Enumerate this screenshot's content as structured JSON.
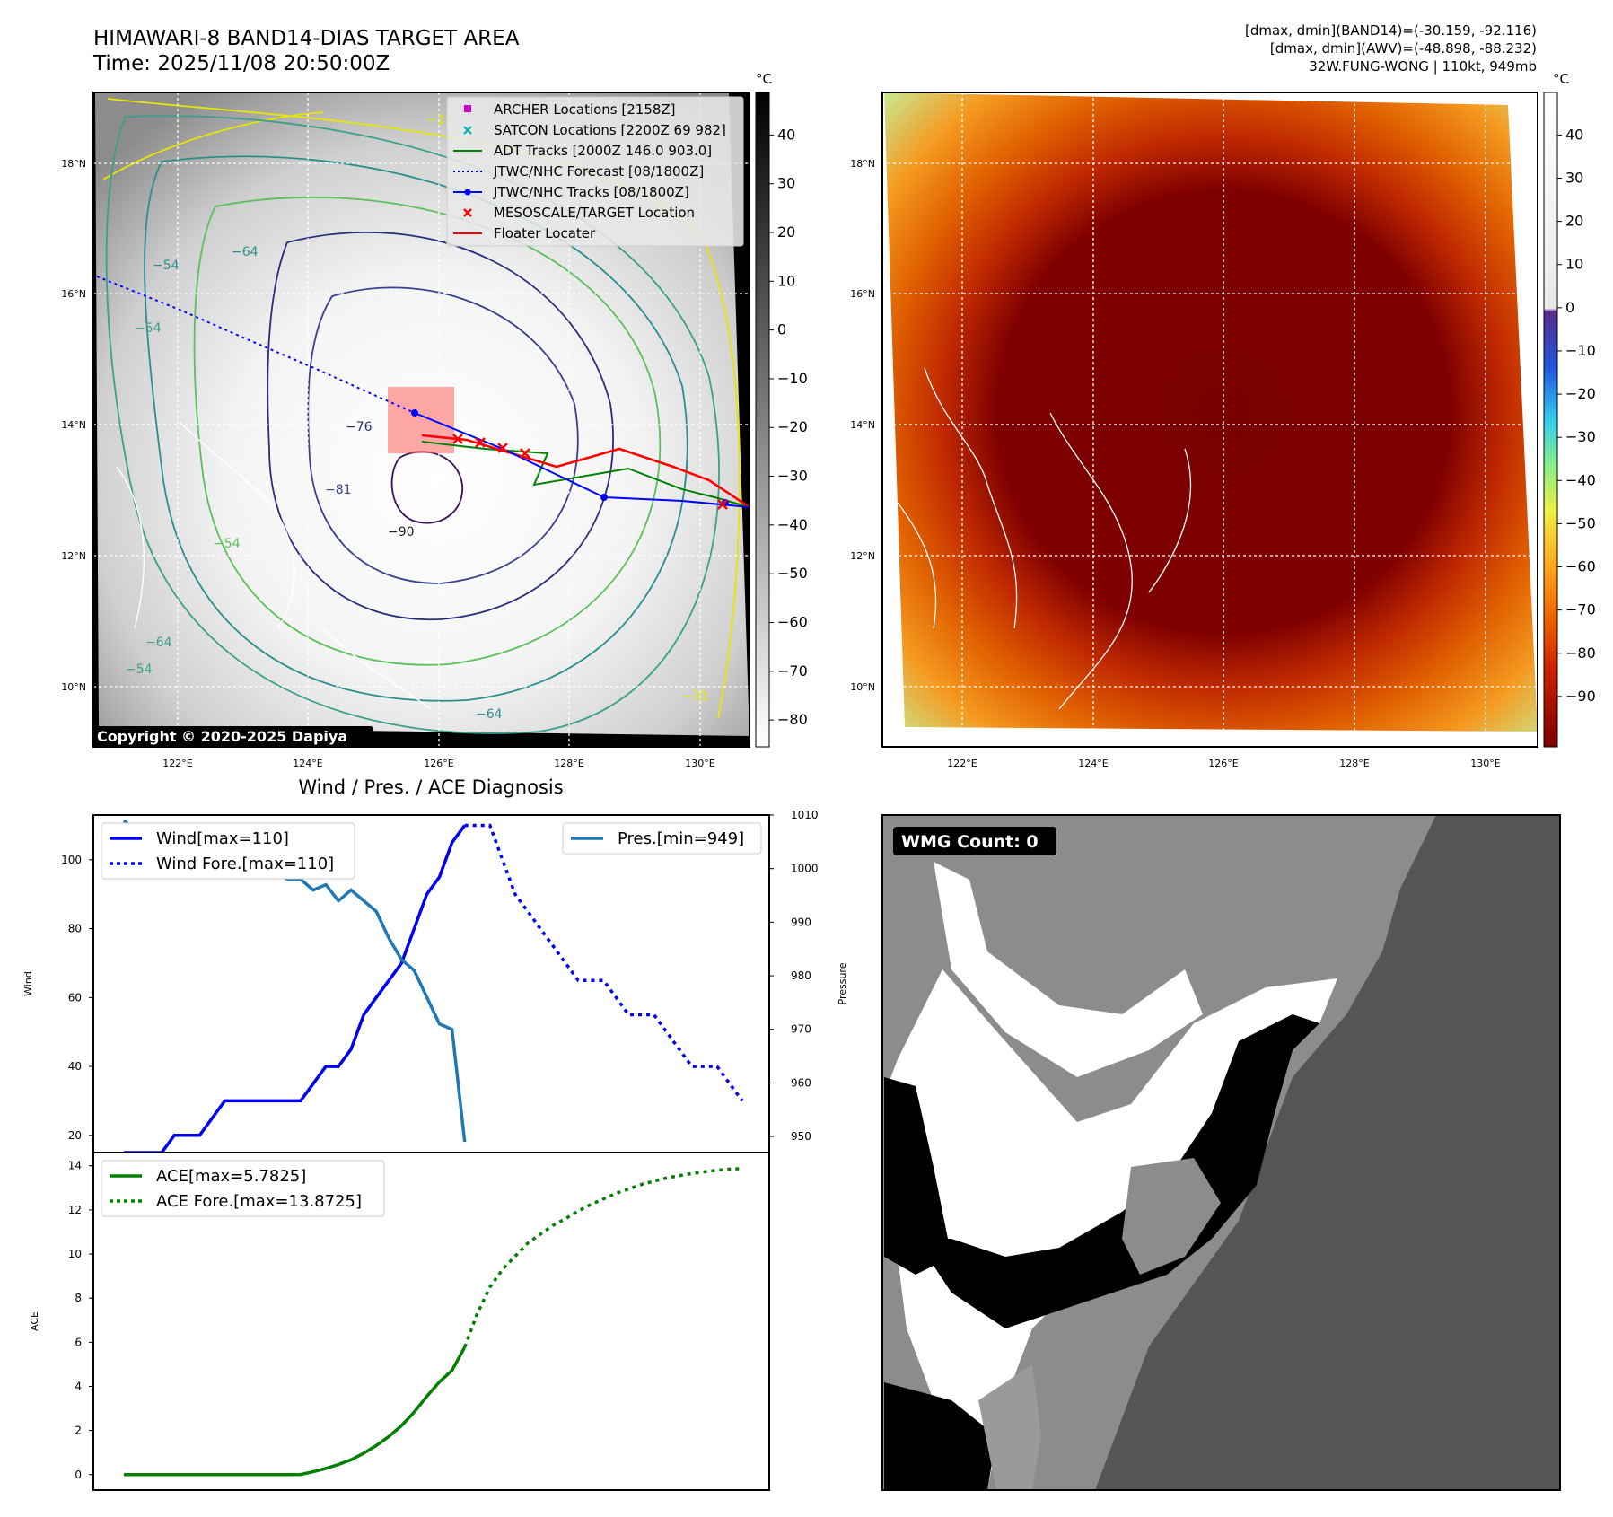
{
  "header": {
    "title_line1": "HIMAWARI-8 BAND14-DIAS TARGET AREA",
    "title_line2": "Time: 2025/11/08 20:50:00Z",
    "stats_line1": "[dmax, dmin](BAND14)=(-30.159, -92.116)",
    "stats_line2": "[dmax, dmin](AWV)=(-48.898, -88.232)",
    "stats_line3": "32W.FUNG-WONG | 110kt, 949mb"
  },
  "colors": {
    "wind": "#0000ee",
    "pressure": "#1f77b4",
    "ace": "#008000",
    "floater": "#ff0000",
    "adt": "#008000",
    "jtwc": "#0000ff",
    "archer": "#cc00cc",
    "satcon": "#00b0b0"
  },
  "map_left": {
    "unit": "°C",
    "copyright": "Copyright © 2020-2025 Dapiya",
    "colorbar_ticks": [
      "40",
      "30",
      "20",
      "10",
      "0",
      "−10",
      "−20",
      "−30",
      "−40",
      "−50",
      "−60",
      "−70",
      "−80"
    ],
    "x_ticks": [
      "122°E",
      "124°E",
      "126°E",
      "128°E",
      "130°E"
    ],
    "y_ticks": [
      "18°N",
      "16°N",
      "14°N",
      "12°N",
      "10°N"
    ],
    "contour_labels": [
      "−90",
      "−81",
      "−76",
      "−64",
      "−54",
      "−54",
      "−54",
      "−64",
      "−31",
      "−31",
      "−64",
      "−54"
    ],
    "legend": [
      {
        "label": "ARCHER Locations [2158Z]",
        "icon": "square-marker"
      },
      {
        "label": "SATCON Locations [2200Z 69 982]",
        "icon": "x-marker"
      },
      {
        "label": "ADT Tracks [2000Z 146.0 903.0]",
        "icon": "solid-line"
      },
      {
        "label": "JTWC/NHC Forecast [08/1800Z]",
        "icon": "dotted-line"
      },
      {
        "label": "JTWC/NHC Tracks [08/1800Z]",
        "icon": "line-dot"
      },
      {
        "label": "MESOSCALE/TARGET Location",
        "icon": "x-marker"
      },
      {
        "label": "Floater Locater",
        "icon": "solid-line"
      }
    ]
  },
  "map_right": {
    "unit": "°C",
    "colorbar_ticks": [
      "40",
      "30",
      "20",
      "10",
      "0",
      "−10",
      "−20",
      "−30",
      "−40",
      "−50",
      "−60",
      "−70",
      "−80",
      "−90"
    ],
    "x_ticks": [
      "122°E",
      "124°E",
      "126°E",
      "128°E",
      "130°E"
    ],
    "y_ticks": [
      "18°N",
      "16°N",
      "14°N",
      "12°N",
      "10°N"
    ]
  },
  "wmg": {
    "count_label": "WMG Count: 0"
  },
  "chart_data": [
    {
      "type": "line",
      "title": "Wind / Pres. / ACE Diagnosis",
      "ylabel": "Wind",
      "ylabel_right": "Pressure",
      "ylim": [
        15,
        113
      ],
      "ylim_right": [
        947,
        1010
      ],
      "yticks": [
        "20",
        "40",
        "60",
        "80",
        "100"
      ],
      "yticks_right": [
        "950",
        "960",
        "970",
        "980",
        "990",
        "1000",
        "1010"
      ],
      "x": [
        0,
        1,
        2,
        3,
        4,
        5,
        6,
        7,
        8,
        9,
        10,
        11,
        12,
        13,
        14,
        15,
        16,
        17,
        18,
        19,
        20,
        21,
        22,
        23,
        24,
        25,
        26,
        27,
        28,
        29,
        30,
        31,
        32,
        33,
        34,
        35,
        36,
        37,
        38,
        39,
        40,
        41,
        42,
        43,
        44,
        45,
        46,
        47,
        48,
        49
      ],
      "series": [
        {
          "name": "Wind[max=110]",
          "axis": "left",
          "style": "solid",
          "x": [
            0,
            1,
            2,
            3,
            4,
            5,
            6,
            7,
            8,
            9,
            10,
            11,
            12,
            13,
            14,
            15,
            16,
            17,
            18,
            19,
            20,
            21,
            22,
            23,
            24,
            25,
            26,
            27
          ],
          "values": [
            15,
            15,
            15,
            15,
            20,
            20,
            20,
            25,
            30,
            30,
            30,
            30,
            30,
            30,
            30,
            35,
            40,
            40,
            45,
            55,
            60,
            65,
            70,
            80,
            90,
            95,
            105,
            110
          ]
        },
        {
          "name": "Wind Fore.[max=110]",
          "axis": "left",
          "style": "dotted",
          "x": [
            27,
            28,
            29,
            30,
            31,
            32,
            33,
            34,
            35,
            36,
            37,
            38,
            39,
            40,
            41,
            42,
            43,
            44,
            45,
            46,
            47,
            48,
            49
          ],
          "values": [
            110,
            110,
            110,
            100,
            90,
            85,
            80,
            75,
            70,
            65,
            65,
            65,
            60,
            55,
            55,
            55,
            50,
            45,
            40,
            40,
            40,
            35,
            30
          ]
        },
        {
          "name": "Pres.[min=949]",
          "axis": "right",
          "style": "solid",
          "x": [
            0,
            1,
            2,
            3,
            4,
            5,
            6,
            7,
            8,
            9,
            10,
            11,
            12,
            13,
            14,
            15,
            16,
            17,
            18,
            19,
            20,
            21,
            22,
            23,
            24,
            25,
            26,
            27
          ],
          "values": [
            1009,
            1007,
            1006,
            1006,
            1005,
            1004,
            1000,
            1001,
            1001,
            1001,
            1000,
            999,
            999,
            998,
            998,
            996,
            997,
            994,
            996,
            994,
            992,
            987,
            983,
            981,
            976,
            971,
            970,
            949
          ]
        }
      ],
      "legend": [
        "Wind[max=110]",
        "Wind Fore.[max=110]",
        "Pres.[min=949]"
      ]
    },
    {
      "type": "line",
      "ylabel": "ACE",
      "ylim": [
        -0.7,
        14.6
      ],
      "yticks": [
        "0",
        "2",
        "4",
        "6",
        "8",
        "10",
        "12",
        "14"
      ],
      "series": [
        {
          "name": "ACE[max=5.7825]",
          "style": "solid",
          "x": [
            0,
            1,
            2,
            3,
            4,
            5,
            6,
            7,
            8,
            9,
            10,
            11,
            12,
            13,
            14,
            15,
            16,
            17,
            18,
            19,
            20,
            21,
            22,
            23,
            24,
            25,
            26,
            27
          ],
          "values": [
            0,
            0,
            0,
            0,
            0,
            0,
            0,
            0,
            0,
            0,
            0,
            0,
            0,
            0,
            0.01,
            0.13,
            0.28,
            0.46,
            0.67,
            0.97,
            1.32,
            1.73,
            2.22,
            2.83,
            3.55,
            4.2,
            4.73,
            5.78
          ]
        },
        {
          "name": "ACE Fore.[max=13.8725]",
          "style": "dotted",
          "x": [
            27,
            28,
            29,
            30,
            31,
            32,
            33,
            34,
            35,
            36,
            37,
            38,
            39,
            40,
            41,
            42,
            43,
            44,
            45,
            46,
            47,
            48,
            49
          ],
          "values": [
            5.78,
            7.3,
            8.5,
            9.3,
            9.9,
            10.5,
            10.9,
            11.3,
            11.6,
            11.95,
            12.25,
            12.5,
            12.75,
            12.95,
            13.15,
            13.3,
            13.45,
            13.55,
            13.65,
            13.73,
            13.8,
            13.85,
            13.87
          ]
        }
      ],
      "legend": [
        "ACE[max=5.7825]",
        "ACE Fore.[max=13.8725]"
      ]
    }
  ]
}
